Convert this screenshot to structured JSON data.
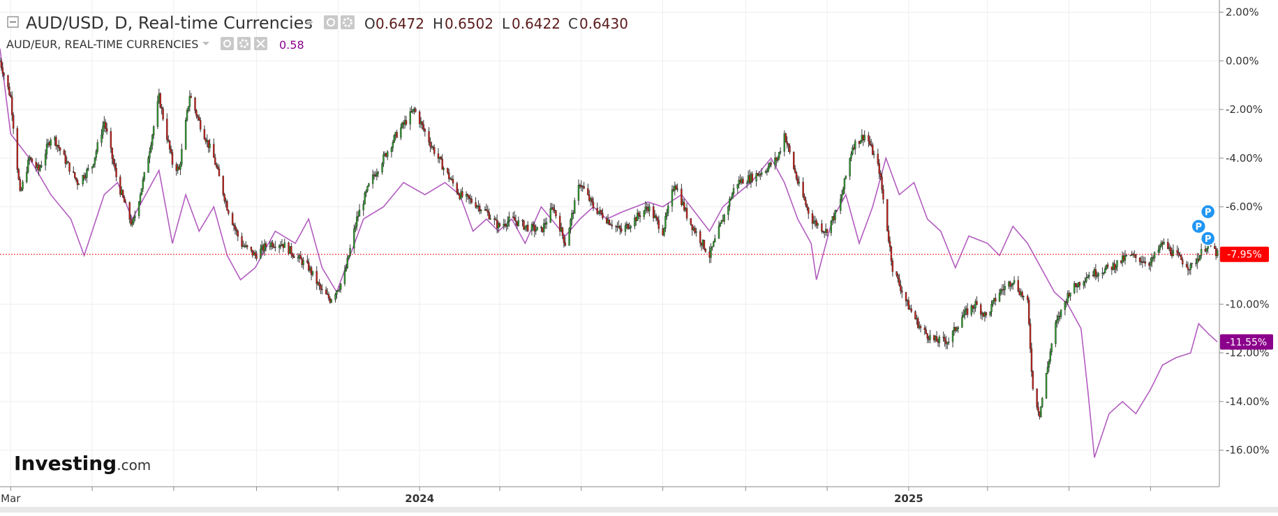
{
  "legend": {
    "main_symbol": "AUD/USD, D, Real-time Currencies",
    "ohlc": {
      "o_label": "O",
      "o_value": "0.6472",
      "h_label": "H",
      "h_value": "0.6502",
      "l_label": "L",
      "l_value": "0.6422",
      "c_label": "C",
      "c_value": "0.6430"
    },
    "compare_symbol": "AUD/EUR, REAL-TIME CURRENCIES",
    "compare_value": "0.58"
  },
  "logo": {
    "text_main": "Investing",
    "text_suffix": ".com"
  },
  "colors": {
    "up_candle": "#2e9e2e",
    "down_candle": "#c8201a",
    "wick": "#333333",
    "compare_line": "#b25bbf",
    "last_price_line": "#e8171b",
    "last_price_badge": "#ff0000",
    "compare_badge": "#8b008b",
    "marker": "#2196f3",
    "grid": "#eeeeee",
    "legend_value": "#5a1a1a",
    "compare_value": "#8b008b"
  },
  "markers": [
    {
      "label": "P",
      "date": "2025-08-13",
      "pct": -6.2
    },
    {
      "label": "P",
      "date": "2025-08-06",
      "pct": -6.8
    },
    {
      "label": "P",
      "date": "2025-08-13",
      "pct": -7.3
    }
  ],
  "chart_data": {
    "type": "line",
    "x_scale": "time",
    "x_range": [
      "2023-02-21",
      "2025-08-21"
    ],
    "x_tick_labels": [
      {
        "label": "Mar",
        "date": "2023-03-01",
        "bold": false
      },
      {
        "label": "2024",
        "date": "2024-01-01",
        "bold": true
      },
      {
        "label": "2025",
        "date": "2025-01-01",
        "bold": true
      }
    ],
    "x_minor_ticks": [
      "2023-05-01",
      "2023-07-01",
      "2023-09-01",
      "2023-11-01",
      "2024-03-01",
      "2024-05-01",
      "2024-07-01",
      "2024-09-01",
      "2024-11-01",
      "2025-03-01",
      "2025-05-01",
      "2025-07-01"
    ],
    "ylabel": "%",
    "ylim": [
      -17.5,
      2.5
    ],
    "y_ticks": [
      {
        "value": 2,
        "label": "2.00%"
      },
      {
        "value": 0,
        "label": "0.00%"
      },
      {
        "value": -2,
        "label": "-2.00%"
      },
      {
        "value": -4,
        "label": "-4.00%"
      },
      {
        "value": -6,
        "label": "-6.00%"
      },
      {
        "value": -10,
        "label": "-10.00%"
      },
      {
        "value": -12,
        "label": "-12.00%"
      },
      {
        "value": -14,
        "label": "-14.00%"
      },
      {
        "value": -16,
        "label": "-16.00%"
      }
    ],
    "last_values": {
      "main": {
        "value": -7.95,
        "label": "-7.95%"
      },
      "compare": {
        "value": -11.55,
        "label": "-11.55%"
      }
    },
    "series": [
      {
        "name": "AUD/USD",
        "kind": "candlestick",
        "points": [
          [
            "2023-02-21",
            0.0
          ],
          [
            "2023-03-01",
            -1.5
          ],
          [
            "2023-03-08",
            -5.5
          ],
          [
            "2023-03-15",
            -4.0
          ],
          [
            "2023-03-22",
            -4.5
          ],
          [
            "2023-04-01",
            -3.0
          ],
          [
            "2023-04-10",
            -4.0
          ],
          [
            "2023-04-20",
            -5.0
          ],
          [
            "2023-05-01",
            -4.3
          ],
          [
            "2023-05-10",
            -2.5
          ],
          [
            "2023-05-20",
            -5.0
          ],
          [
            "2023-05-31",
            -6.8
          ],
          [
            "2023-06-10",
            -4.5
          ],
          [
            "2023-06-20",
            -1.5
          ],
          [
            "2023-06-30",
            -4.2
          ],
          [
            "2023-07-05",
            -4.5
          ],
          [
            "2023-07-13",
            -1.4
          ],
          [
            "2023-07-20",
            -2.5
          ],
          [
            "2023-07-31",
            -4.0
          ],
          [
            "2023-08-10",
            -6.0
          ],
          [
            "2023-08-20",
            -7.5
          ],
          [
            "2023-08-31",
            -8.0
          ],
          [
            "2023-09-10",
            -7.5
          ],
          [
            "2023-09-20",
            -7.5
          ],
          [
            "2023-09-30",
            -8.0
          ],
          [
            "2023-10-10",
            -8.5
          ],
          [
            "2023-10-20",
            -9.5
          ],
          [
            "2023-10-26",
            -9.8
          ],
          [
            "2023-11-05",
            -9.0
          ],
          [
            "2023-11-15",
            -6.5
          ],
          [
            "2023-11-25",
            -5.0
          ],
          [
            "2023-12-05",
            -4.0
          ],
          [
            "2023-12-15",
            -3.0
          ],
          [
            "2023-12-28",
            -2.0
          ],
          [
            "2024-01-10",
            -3.5
          ],
          [
            "2024-01-20",
            -4.5
          ],
          [
            "2024-01-31",
            -5.5
          ],
          [
            "2024-02-10",
            -5.8
          ],
          [
            "2024-02-20",
            -6.2
          ],
          [
            "2024-02-29",
            -6.8
          ],
          [
            "2024-03-10",
            -6.5
          ],
          [
            "2024-03-20",
            -6.8
          ],
          [
            "2024-04-01",
            -7.0
          ],
          [
            "2024-04-10",
            -6.0
          ],
          [
            "2024-04-19",
            -7.5
          ],
          [
            "2024-04-30",
            -5.0
          ],
          [
            "2024-05-10",
            -6.0
          ],
          [
            "2024-05-20",
            -6.5
          ],
          [
            "2024-05-31",
            -7.0
          ],
          [
            "2024-06-10",
            -6.5
          ],
          [
            "2024-06-20",
            -6.0
          ],
          [
            "2024-07-01",
            -7.0
          ],
          [
            "2024-07-10",
            -5.0
          ],
          [
            "2024-07-20",
            -6.5
          ],
          [
            "2024-08-05",
            -8.0
          ],
          [
            "2024-08-15",
            -6.5
          ],
          [
            "2024-08-25",
            -5.0
          ],
          [
            "2024-09-05",
            -4.8
          ],
          [
            "2024-09-15",
            -4.5
          ],
          [
            "2024-09-25",
            -4.0
          ],
          [
            "2024-09-30",
            -3.0
          ],
          [
            "2024-10-10",
            -5.0
          ],
          [
            "2024-10-20",
            -6.5
          ],
          [
            "2024-10-31",
            -7.0
          ],
          [
            "2024-11-10",
            -6.0
          ],
          [
            "2024-11-20",
            -3.5
          ],
          [
            "2024-11-30",
            -3.0
          ],
          [
            "2024-12-10",
            -4.5
          ],
          [
            "2024-12-20",
            -8.5
          ],
          [
            "2024-12-31",
            -10.0
          ],
          [
            "2025-01-10",
            -11.0
          ],
          [
            "2025-01-20",
            -11.5
          ],
          [
            "2025-01-31",
            -11.5
          ],
          [
            "2025-02-10",
            -10.5
          ],
          [
            "2025-02-20",
            -10.0
          ],
          [
            "2025-02-28",
            -10.5
          ],
          [
            "2025-03-10",
            -9.5
          ],
          [
            "2025-03-20",
            -9.0
          ],
          [
            "2025-03-31",
            -10.0
          ],
          [
            "2025-04-04",
            -13.5
          ],
          [
            "2025-04-09",
            -14.5
          ],
          [
            "2025-04-20",
            -11.0
          ],
          [
            "2025-05-01",
            -9.5
          ],
          [
            "2025-05-15",
            -8.8
          ],
          [
            "2025-06-01",
            -8.5
          ],
          [
            "2025-06-15",
            -8.0
          ],
          [
            "2025-07-01",
            -8.3
          ],
          [
            "2025-07-10",
            -7.5
          ],
          [
            "2025-07-20",
            -8.0
          ],
          [
            "2025-07-31",
            -8.5
          ],
          [
            "2025-08-13",
            -7.5
          ],
          [
            "2025-08-20",
            -7.95
          ]
        ]
      },
      {
        "name": "AUD/EUR",
        "kind": "line",
        "points": [
          [
            "2023-02-21",
            0.5
          ],
          [
            "2023-03-01",
            -3.0
          ],
          [
            "2023-03-15",
            -4.0
          ],
          [
            "2023-03-31",
            -5.5
          ],
          [
            "2023-04-15",
            -6.5
          ],
          [
            "2023-04-25",
            -8.0
          ],
          [
            "2023-05-10",
            -5.5
          ],
          [
            "2023-05-20",
            -5.0
          ],
          [
            "2023-05-31",
            -6.5
          ],
          [
            "2023-06-10",
            -5.5
          ],
          [
            "2023-06-20",
            -4.5
          ],
          [
            "2023-06-30",
            -7.5
          ],
          [
            "2023-07-10",
            -5.5
          ],
          [
            "2023-07-20",
            -7.0
          ],
          [
            "2023-07-31",
            -6.0
          ],
          [
            "2023-08-10",
            -8.0
          ],
          [
            "2023-08-20",
            -9.0
          ],
          [
            "2023-08-31",
            -8.5
          ],
          [
            "2023-09-15",
            -7.0
          ],
          [
            "2023-09-30",
            -7.5
          ],
          [
            "2023-10-10",
            -6.5
          ],
          [
            "2023-10-20",
            -8.5
          ],
          [
            "2023-10-31",
            -9.5
          ],
          [
            "2023-11-10",
            -8.0
          ],
          [
            "2023-11-20",
            -6.5
          ],
          [
            "2023-12-05",
            -6.0
          ],
          [
            "2023-12-20",
            -5.0
          ],
          [
            "2024-01-05",
            -5.5
          ],
          [
            "2024-01-20",
            -5.0
          ],
          [
            "2024-01-31",
            -5.5
          ],
          [
            "2024-02-10",
            -7.0
          ],
          [
            "2024-02-20",
            -6.5
          ],
          [
            "2024-02-29",
            -7.0
          ],
          [
            "2024-03-10",
            -6.5
          ],
          [
            "2024-03-20",
            -7.5
          ],
          [
            "2024-04-01",
            -6.0
          ],
          [
            "2024-04-19",
            -7.2
          ],
          [
            "2024-04-30",
            -6.5
          ],
          [
            "2024-05-10",
            -6.0
          ],
          [
            "2024-05-20",
            -6.5
          ],
          [
            "2024-06-01",
            -6.2
          ],
          [
            "2024-06-20",
            -5.8
          ],
          [
            "2024-07-01",
            -6.0
          ],
          [
            "2024-07-15",
            -5.5
          ],
          [
            "2024-08-05",
            -7.0
          ],
          [
            "2024-08-15",
            -6.0
          ],
          [
            "2024-08-25",
            -5.5
          ],
          [
            "2024-09-05",
            -5.0
          ],
          [
            "2024-09-20",
            -4.0
          ],
          [
            "2024-09-30",
            -5.0
          ],
          [
            "2024-10-10",
            -6.5
          ],
          [
            "2024-10-20",
            -7.5
          ],
          [
            "2024-10-24",
            -9.0
          ],
          [
            "2024-11-05",
            -6.5
          ],
          [
            "2024-11-15",
            -5.5
          ],
          [
            "2024-11-25",
            -7.5
          ],
          [
            "2024-12-05",
            -6.0
          ],
          [
            "2024-12-15",
            -4.0
          ],
          [
            "2024-12-25",
            -5.5
          ],
          [
            "2025-01-05",
            -5.0
          ],
          [
            "2025-01-15",
            -6.5
          ],
          [
            "2025-01-25",
            -7.0
          ],
          [
            "2025-02-05",
            -8.5
          ],
          [
            "2025-02-15",
            -7.2
          ],
          [
            "2025-03-01",
            -7.5
          ],
          [
            "2025-03-10",
            -8.0
          ],
          [
            "2025-03-20",
            -6.8
          ],
          [
            "2025-03-31",
            -7.5
          ],
          [
            "2025-04-10",
            -8.5
          ],
          [
            "2025-04-20",
            -9.5
          ],
          [
            "2025-04-30",
            -10.0
          ],
          [
            "2025-05-10",
            -11.0
          ],
          [
            "2025-05-15",
            -13.5
          ],
          [
            "2025-05-20",
            -16.3
          ],
          [
            "2025-05-31",
            -14.5
          ],
          [
            "2025-06-10",
            -14.0
          ],
          [
            "2025-06-20",
            -14.5
          ],
          [
            "2025-07-01",
            -13.5
          ],
          [
            "2025-07-10",
            -12.5
          ],
          [
            "2025-07-20",
            -12.2
          ],
          [
            "2025-07-31",
            -12.0
          ],
          [
            "2025-08-06",
            -10.8
          ],
          [
            "2025-08-13",
            -11.2
          ],
          [
            "2025-08-20",
            -11.55
          ]
        ]
      }
    ]
  }
}
